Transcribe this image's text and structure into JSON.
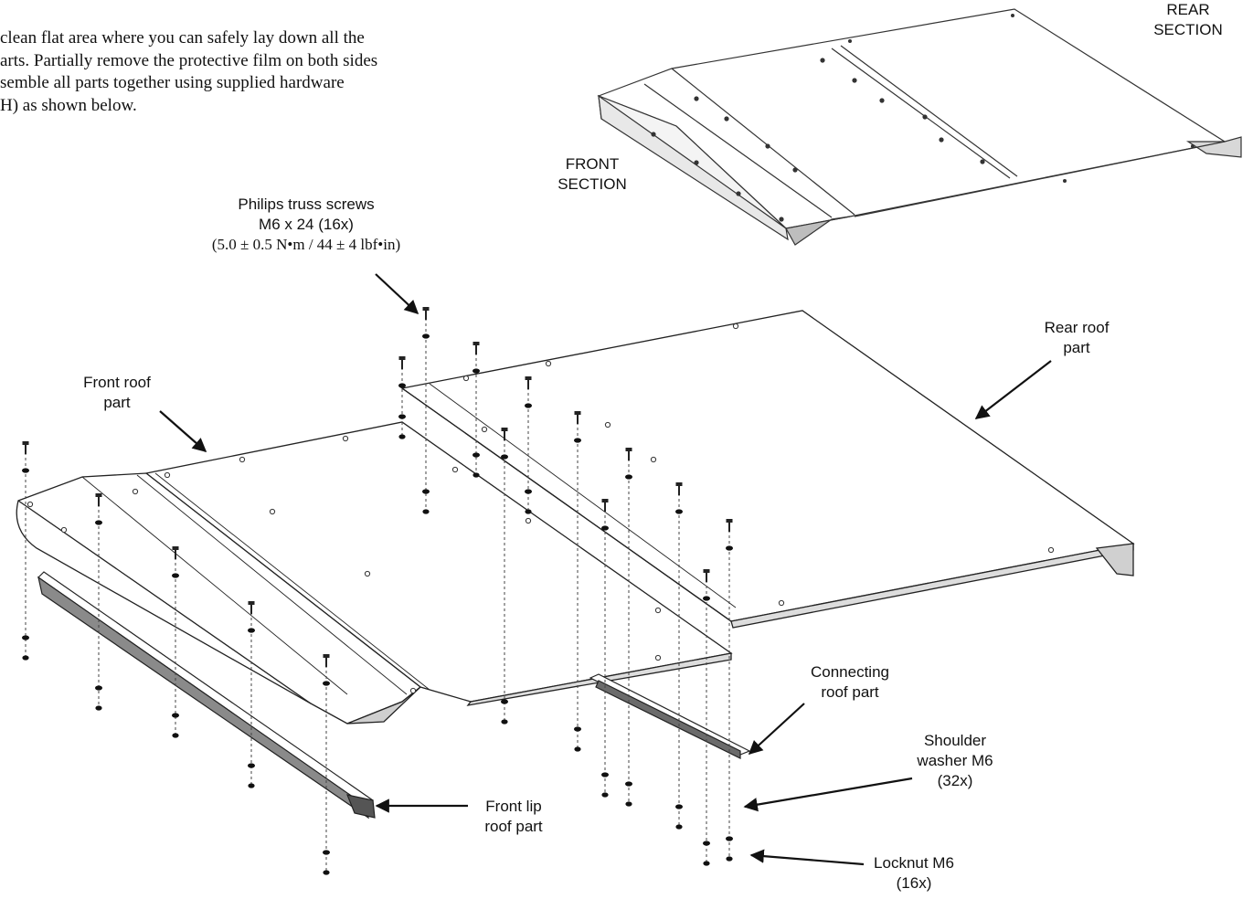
{
  "intro": {
    "lines": [
      "clean flat area where you can safely lay down all the",
      "arts.  Partially remove the protective film on both sides",
      "semble all parts together using supplied hardware",
      "H) as shown below."
    ]
  },
  "labels": {
    "rear_section": [
      "REAR",
      "SECTION"
    ],
    "front_section": [
      "FRONT",
      "SECTION"
    ],
    "screws": [
      "Philips truss screws",
      "M6 x 24 (16x)",
      "(5.0 ± 0.5 N•m / 44 ± 4 lbf•in)"
    ],
    "rear_roof": [
      "Rear roof",
      "part"
    ],
    "front_roof": [
      "Front roof",
      "part"
    ],
    "connecting_roof": [
      "Connecting",
      "roof part"
    ],
    "shoulder_washer": [
      "Shoulder",
      "washer M6",
      "(32x)"
    ],
    "front_lip": [
      "Front lip",
      "roof part"
    ],
    "locknut": [
      "Locknut M6",
      "(16x)"
    ]
  },
  "colors": {
    "line": "#222222",
    "panel": "#ffffff",
    "shade": "#cfcfcf",
    "dark": "#555555"
  }
}
